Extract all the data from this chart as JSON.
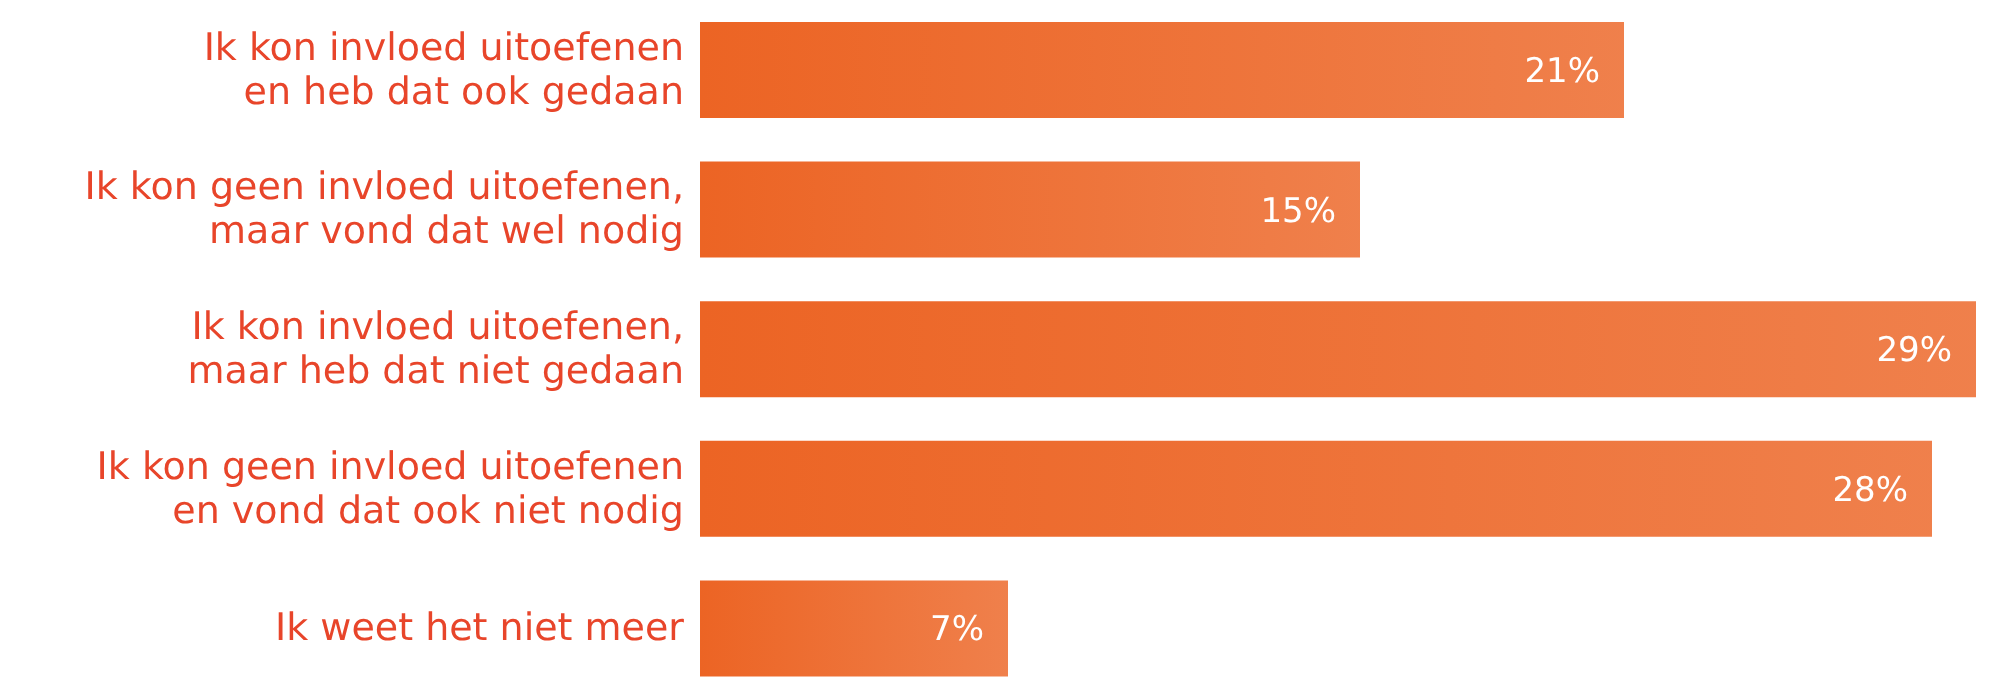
{
  "chart_data": {
    "type": "bar",
    "orientation": "horizontal",
    "categories": [
      "Ik kon invloed uitoefenen\nen heb dat ook gedaan",
      "Ik kon geen invloed uitoefenen,\nmaar vond dat wel nodig",
      "Ik kon invloed uitoefenen,\nmaar heb dat niet gedaan",
      "Ik kon geen invloed uitoefenen\nen vond dat ook niet nodig",
      "Ik weet het niet meer"
    ],
    "values": [
      21,
      15,
      29,
      28,
      7
    ],
    "value_labels": [
      "21%",
      "15%",
      "29%",
      "28%",
      "7%"
    ],
    "color": "#ec6424"
  }
}
